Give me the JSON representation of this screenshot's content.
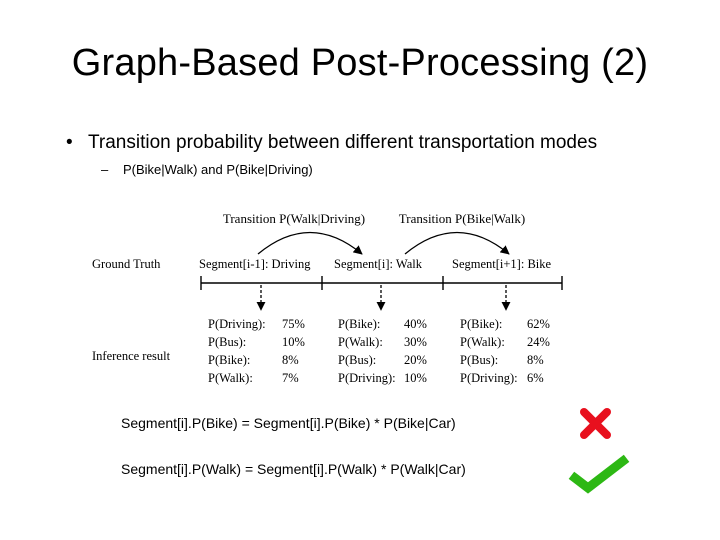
{
  "slide": {
    "title": "Graph-Based Post-Processing (2)",
    "bullet": "Transition probability between different transportation modes",
    "bullet_marker": "•",
    "subbullet": "P(Bike|Walk) and P(Bike|Driving)",
    "subbullet_marker": "–"
  },
  "figure": {
    "transition_left": "Transition P(Walk|Driving)",
    "transition_right": "Transition P(Bike|Walk)",
    "row_ground_truth": "Ground Truth",
    "row_inference": "Inference result",
    "segments": [
      "Segment[i-1]: Driving",
      "Segment[i]: Walk",
      "Segment[i+1]: Bike"
    ],
    "columns": [
      {
        "rows": [
          {
            "label": "P(Driving):",
            "value": "75%"
          },
          {
            "label": "P(Bus):",
            "value": "10%"
          },
          {
            "label": "P(Bike):",
            "value": "8%"
          },
          {
            "label": "P(Walk):",
            "value": "7%"
          }
        ]
      },
      {
        "rows": [
          {
            "label": "P(Bike):",
            "value": "40%"
          },
          {
            "label": "P(Walk):",
            "value": "30%"
          },
          {
            "label": "P(Bus):",
            "value": "20%"
          },
          {
            "label": "P(Driving):",
            "value": "10%"
          }
        ]
      },
      {
        "rows": [
          {
            "label": "P(Bike):",
            "value": "62%"
          },
          {
            "label": "P(Walk):",
            "value": "24%"
          },
          {
            "label": "P(Bus):",
            "value": "8%"
          },
          {
            "label": "P(Driving):",
            "value": "6%"
          }
        ]
      }
    ]
  },
  "equations": [
    {
      "text": "Segment[i].P(Bike) = Segment[i].P(Bike) * P(Bike|Car)",
      "mark": "cross-icon"
    },
    {
      "text": "Segment[i].P(Walk) = Segment[i].P(Walk) * P(Walk|Car)",
      "mark": "check-icon"
    }
  ],
  "colors": {
    "cross": "#e8101e",
    "check": "#2db814"
  }
}
